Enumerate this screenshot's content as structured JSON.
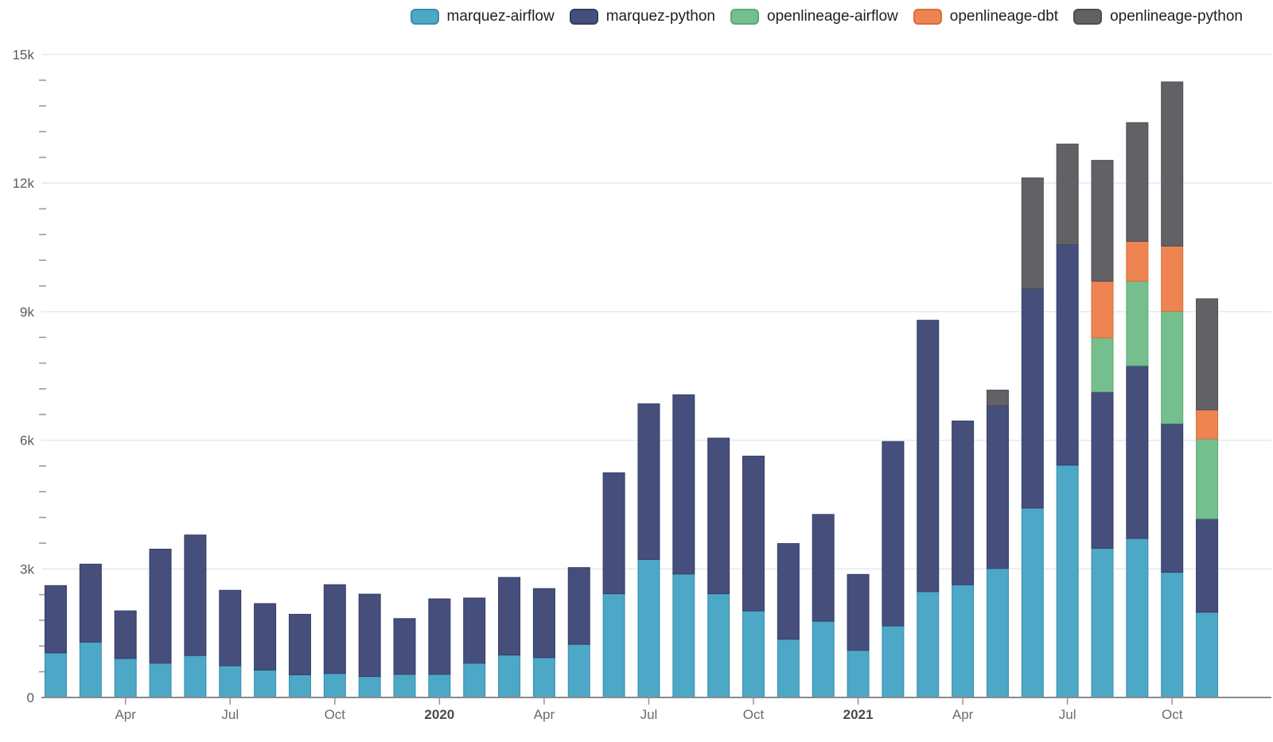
{
  "chart_data": {
    "type": "bar",
    "stacked": true,
    "title": "",
    "xlabel": "",
    "ylabel": "",
    "ylim": [
      0,
      15000
    ],
    "grid": true,
    "legend_position": "top-right",
    "ytick_interval": 3000,
    "yminor_interval": 600,
    "yticks": [
      {
        "value": 0,
        "label": "0"
      },
      {
        "value": 3000,
        "label": "3k"
      },
      {
        "value": 6000,
        "label": "6k"
      },
      {
        "value": 9000,
        "label": "9k"
      },
      {
        "value": 12000,
        "label": "12k"
      },
      {
        "value": 15000,
        "label": "15k"
      }
    ],
    "x": [
      "2019-02",
      "2019-03",
      "2019-04",
      "2019-05",
      "2019-06",
      "2019-07",
      "2019-08",
      "2019-09",
      "2019-10",
      "2019-11",
      "2019-12",
      "2020-01",
      "2020-02",
      "2020-03",
      "2020-04",
      "2020-05",
      "2020-06",
      "2020-07",
      "2020-08",
      "2020-09",
      "2020-10",
      "2020-11",
      "2020-12",
      "2021-01",
      "2021-02",
      "2021-03",
      "2021-04",
      "2021-05",
      "2021-06",
      "2021-07",
      "2021-08",
      "2021-09",
      "2021-10",
      "2021-11"
    ],
    "xticks": [
      {
        "index": 2,
        "label": "Apr",
        "bold": false
      },
      {
        "index": 5,
        "label": "Jul",
        "bold": false
      },
      {
        "index": 8,
        "label": "Oct",
        "bold": false
      },
      {
        "index": 11,
        "label": "2020",
        "bold": true
      },
      {
        "index": 14,
        "label": "Apr",
        "bold": false
      },
      {
        "index": 17,
        "label": "Jul",
        "bold": false
      },
      {
        "index": 20,
        "label": "Oct",
        "bold": false
      },
      {
        "index": 23,
        "label": "2021",
        "bold": true
      },
      {
        "index": 26,
        "label": "Apr",
        "bold": false
      },
      {
        "index": 29,
        "label": "Jul",
        "bold": false
      },
      {
        "index": 32,
        "label": "Oct",
        "bold": false
      }
    ],
    "series": [
      {
        "name": "marquez-airflow",
        "color": "#4da7c6",
        "border_color": "#3a8fae",
        "values": [
          1040,
          1290,
          910,
          800,
          980,
          740,
          640,
          530,
          560,
          490,
          540,
          540,
          800,
          990,
          930,
          1240,
          2420,
          3220,
          2880,
          2420,
          2020,
          1360,
          1780,
          1100,
          1670,
          2470,
          2630,
          3010,
          4420,
          5420,
          3480,
          3710,
          2920,
          1990
        ]
      },
      {
        "name": "marquez-python",
        "color": "#464f7c",
        "border_color": "#353d66",
        "values": [
          1570,
          1820,
          1110,
          2660,
          2810,
          1760,
          1550,
          1410,
          2070,
          1920,
          1300,
          1760,
          1520,
          1810,
          1610,
          1790,
          2820,
          3630,
          4180,
          3630,
          3610,
          2230,
          2490,
          1770,
          4300,
          6330,
          3820,
          3800,
          5120,
          5150,
          3650,
          4030,
          3470,
          2180
        ]
      },
      {
        "name": "openlineage-airflow",
        "color": "#74bf8d",
        "border_color": "#5da877",
        "values": [
          0,
          0,
          0,
          0,
          0,
          0,
          0,
          0,
          0,
          0,
          0,
          0,
          0,
          0,
          0,
          0,
          0,
          0,
          0,
          0,
          0,
          0,
          0,
          0,
          0,
          0,
          0,
          0,
          0,
          0,
          1260,
          1970,
          2620,
          1860
        ]
      },
      {
        "name": "openlineage-dbt",
        "color": "#ee8451",
        "border_color": "#d66e3c",
        "values": [
          0,
          0,
          0,
          0,
          0,
          0,
          0,
          0,
          0,
          0,
          0,
          0,
          0,
          0,
          0,
          0,
          0,
          0,
          0,
          0,
          0,
          0,
          0,
          0,
          0,
          0,
          0,
          0,
          0,
          0,
          1320,
          930,
          1520,
          680
        ]
      },
      {
        "name": "openlineage-python",
        "color": "#626266",
        "border_color": "#4e4e52",
        "values": [
          0,
          0,
          0,
          0,
          0,
          0,
          0,
          0,
          0,
          0,
          0,
          0,
          0,
          0,
          0,
          0,
          0,
          0,
          0,
          0,
          0,
          0,
          0,
          0,
          0,
          0,
          0,
          360,
          2580,
          2340,
          2820,
          2770,
          3830,
          2590
        ]
      }
    ],
    "axis_colors": {
      "gridline": "#e6e9f2",
      "baseline": "#8a8a8e",
      "tick": "#9a9aa0",
      "y_label": "#5a5a5e",
      "x_label": "#6b6b70",
      "x_label_bold": "#4a4a4e",
      "legend_text": "#1f1f1f"
    }
  }
}
